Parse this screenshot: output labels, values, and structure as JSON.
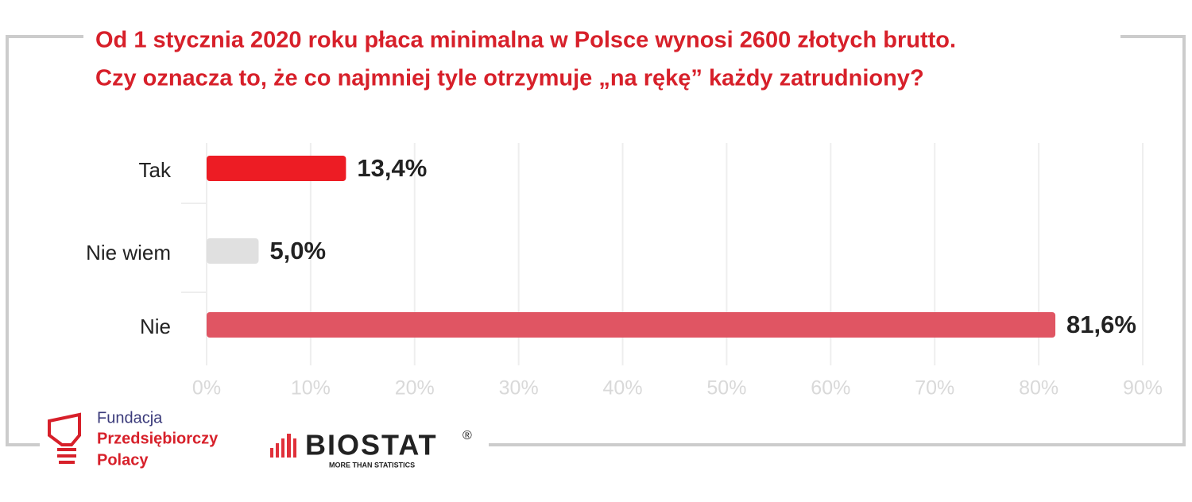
{
  "chart_data": {
    "type": "hbar",
    "title": [
      "Od 1 stycznia 2020 roku płaca minimalna w Polsce wynosi 2600 złotych brutto.",
      "Czy oznacza to, że co najmniej tyle otrzymuje „na rękę” każdy zatrudniony?"
    ],
    "categories": [
      "Tak",
      "Nie wiem",
      "Nie"
    ],
    "values": [
      13.4,
      5.0,
      81.6
    ],
    "value_labels": [
      "13,4%",
      "5,0%",
      "81,6%"
    ],
    "colors": [
      "#ed1c24",
      "#e0e0e0",
      "#e05563"
    ],
    "xlim": [
      0,
      90
    ],
    "xticks": [
      {
        "value": 0,
        "label": "0%"
      },
      {
        "value": 10,
        "label": "10%"
      },
      {
        "value": 20,
        "label": "20%"
      },
      {
        "value": 30,
        "label": "30%"
      },
      {
        "value": 40,
        "label": "40%"
      },
      {
        "value": 50,
        "label": "50%"
      },
      {
        "value": 60,
        "label": "60%"
      },
      {
        "value": 70,
        "label": "70%"
      },
      {
        "value": 80,
        "label": "80%"
      },
      {
        "value": 90,
        "label": "90%"
      }
    ],
    "grid": true
  },
  "logos": {
    "fundacja": [
      "Fundacja",
      "Przedsiębiorczy",
      "Polacy"
    ],
    "biostat": "BIOSTAT",
    "biostat_mark": "®",
    "biostat_tagline": "MORE THAN STATISTICS"
  }
}
